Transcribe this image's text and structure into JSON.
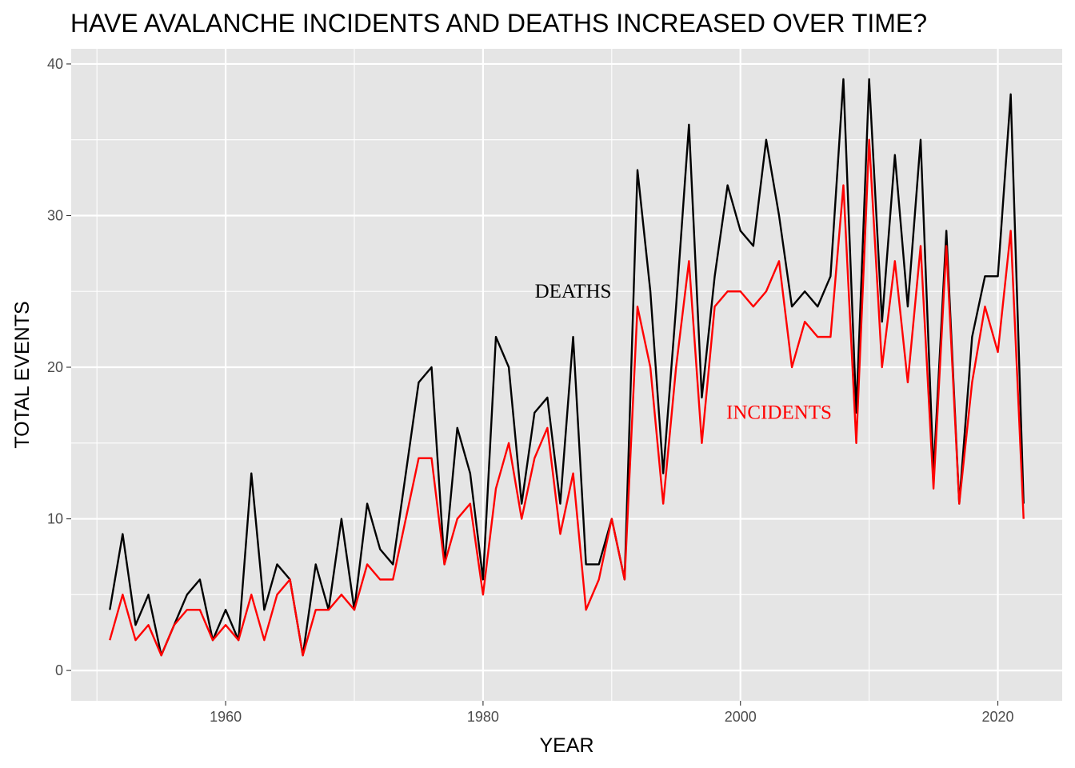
{
  "chart_data": {
    "type": "line",
    "title": "HAVE AVALANCHE INCIDENTS AND DEATHS INCREASED OVER TIME?",
    "xlabel": "YEAR",
    "ylabel": "TOTAL EVENTS",
    "xlim": [
      1948,
      2025
    ],
    "ylim": [
      -2,
      41
    ],
    "x_ticks": [
      1960,
      1980,
      2000,
      2020
    ],
    "y_ticks": [
      0,
      10,
      20,
      30,
      40
    ],
    "grid": true,
    "legend": "none",
    "x": [
      1951,
      1952,
      1953,
      1954,
      1955,
      1956,
      1957,
      1958,
      1959,
      1960,
      1961,
      1962,
      1963,
      1964,
      1965,
      1966,
      1967,
      1968,
      1969,
      1970,
      1971,
      1972,
      1973,
      1974,
      1975,
      1976,
      1977,
      1978,
      1979,
      1980,
      1981,
      1982,
      1983,
      1984,
      1985,
      1986,
      1987,
      1988,
      1989,
      1990,
      1991,
      1992,
      1993,
      1994,
      1995,
      1996,
      1997,
      1998,
      1999,
      2000,
      2001,
      2002,
      2003,
      2004,
      2005,
      2006,
      2007,
      2008,
      2009,
      2010,
      2011,
      2012,
      2013,
      2014,
      2015,
      2016,
      2017,
      2018,
      2019,
      2020,
      2021,
      2022
    ],
    "series": [
      {
        "name": "DEATHS",
        "color": "#000000",
        "values": [
          4,
          9,
          3,
          5,
          1,
          3,
          5,
          6,
          2,
          4,
          2,
          13,
          4,
          7,
          6,
          1,
          7,
          4,
          10,
          4,
          11,
          8,
          7,
          13,
          19,
          20,
          7,
          16,
          13,
          6,
          22,
          20,
          11,
          17,
          18,
          11,
          22,
          7,
          7,
          10,
          6,
          33,
          25,
          13,
          24,
          36,
          18,
          26,
          32,
          29,
          28,
          35,
          30,
          24,
          25,
          24,
          26,
          39,
          17,
          39,
          23,
          34,
          24,
          35,
          13,
          29,
          11,
          22,
          26,
          26,
          38,
          11
        ]
      },
      {
        "name": "INCIDENTS",
        "color": "#ff0000",
        "values": [
          2,
          5,
          2,
          3,
          1,
          3,
          4,
          4,
          2,
          3,
          2,
          5,
          2,
          5,
          6,
          1,
          4,
          4,
          5,
          4,
          7,
          6,
          6,
          10,
          14,
          14,
          7,
          10,
          11,
          5,
          12,
          15,
          10,
          14,
          16,
          9,
          13,
          4,
          6,
          10,
          6,
          24,
          20,
          11,
          20,
          27,
          15,
          24,
          25,
          25,
          24,
          25,
          27,
          20,
          23,
          22,
          22,
          32,
          15,
          35,
          20,
          27,
          19,
          28,
          12,
          28,
          11,
          19,
          24,
          21,
          29,
          10
        ]
      }
    ],
    "annotations": [
      {
        "text": "DEATHS",
        "x": 1987,
        "y": 25,
        "color": "#000000"
      },
      {
        "text": "INCIDENTS",
        "x": 2003,
        "y": 17,
        "color": "#ff0000"
      }
    ],
    "colors": {
      "panel": "#e5e5e5",
      "grid": "#ffffff",
      "tick_label": "#4d4d4d",
      "tick_mark": "#333333"
    }
  }
}
